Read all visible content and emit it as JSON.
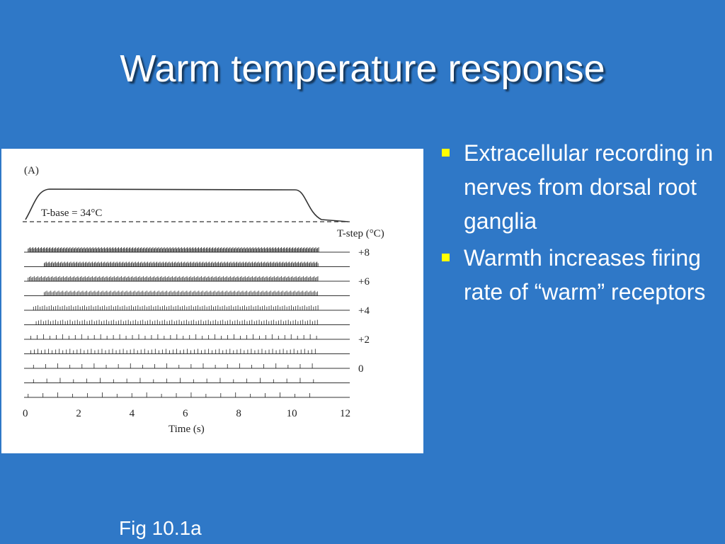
{
  "slide": {
    "title": "Warm temperature response",
    "caption": "Fig 10.1a"
  },
  "bullets": [
    {
      "text": "Extracellular recording in nerves from dorsal root ganglia"
    },
    {
      "text": "Warmth increases firing rate of “warm” receptors"
    }
  ],
  "figure": {
    "panel_label": "(A)",
    "base_label": "T-base = 34°C",
    "step_header": "T-step (°C)",
    "xlabel": "Time (s)",
    "x_ticks": [
      "0",
      "2",
      "4",
      "6",
      "8",
      "10",
      "12"
    ],
    "traces": [
      {
        "label": "+8",
        "spike_rate": 28,
        "start": 0.1
      },
      {
        "label": "",
        "spike_rate": 26,
        "start": 0.7
      },
      {
        "label": "+6",
        "spike_rate": 22,
        "start": 0.1
      },
      {
        "label": "",
        "spike_rate": 20,
        "start": 0.7
      },
      {
        "label": "+4",
        "spike_rate": 12,
        "start": 0.3
      },
      {
        "label": "",
        "spike_rate": 11,
        "start": 0.4
      },
      {
        "label": "+2",
        "spike_rate": 4.2,
        "start": 0.2
      },
      {
        "label": "",
        "spike_rate": 7.5,
        "start": 0.2
      },
      {
        "label": "0",
        "spike_rate": 2.2,
        "start": 0.3
      },
      {
        "label": "",
        "spike_rate": 2.0,
        "start": 0.3
      },
      {
        "label": "",
        "spike_rate": 1.8,
        "start": 0.1
      }
    ]
  }
}
